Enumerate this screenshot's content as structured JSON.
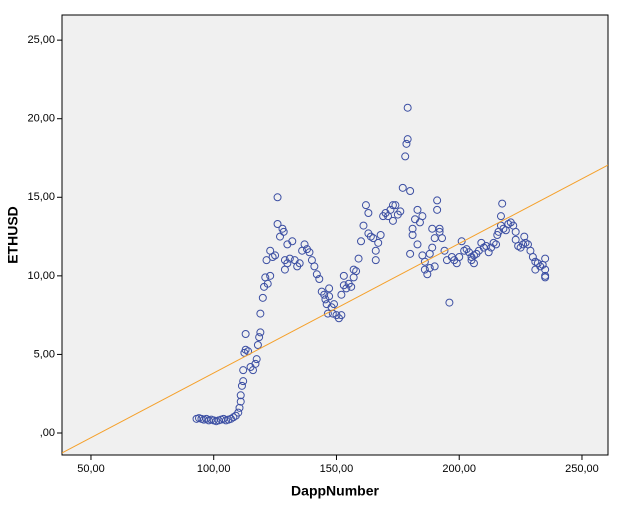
{
  "chart_data": {
    "type": "scatter",
    "xlabel": "DappNumber",
    "ylabel": "ETHUSD",
    "xlim": [
      38.2,
      260.6
    ],
    "ylim": [
      -1.4,
      26.6
    ],
    "xticks": [
      {
        "value": 50,
        "label": "50,00"
      },
      {
        "value": 100,
        "label": "100,00"
      },
      {
        "value": 150,
        "label": "150,00"
      },
      {
        "value": 200,
        "label": "200,00"
      },
      {
        "value": 250,
        "label": "250,00"
      }
    ],
    "yticks": [
      {
        "value": 0,
        "label": ",00"
      },
      {
        "value": 5,
        "label": "5,00"
      },
      {
        "value": 10,
        "label": "10,00"
      },
      {
        "value": 15,
        "label": "15,00"
      },
      {
        "value": 20,
        "label": "20,00"
      },
      {
        "value": 25,
        "label": "25,00"
      }
    ],
    "color": "#3c4fa3",
    "fit_line": {
      "slope": 0.0824,
      "intercept": -4.42,
      "color": "#f5a02a"
    },
    "x": [
      93,
      94,
      95,
      96,
      97,
      98,
      99,
      100,
      101,
      102,
      103,
      104,
      105,
      106,
      107,
      108,
      109,
      110,
      110.5,
      111,
      111,
      111.5,
      112,
      112,
      112.5,
      113,
      113,
      114,
      115,
      116,
      117,
      117.5,
      118,
      118.5,
      119,
      119,
      120,
      120.5,
      121,
      121.5,
      122,
      123,
      123,
      124,
      125,
      126,
      126,
      127,
      128,
      128.5,
      129,
      129,
      130,
      130,
      131,
      132,
      133,
      134,
      135,
      136,
      137,
      138,
      139,
      140,
      141,
      142,
      143,
      144,
      145,
      145.5,
      146,
      146.5,
      147,
      147,
      148,
      148.5,
      149,
      150,
      151,
      152,
      152,
      153,
      153,
      154,
      155,
      156,
      157,
      157,
      158,
      159,
      160,
      161,
      162,
      163,
      163,
      164,
      165,
      166,
      166,
      167,
      168,
      169,
      170,
      171,
      172,
      173,
      173,
      174,
      175,
      176,
      177,
      178,
      178.5,
      179,
      179,
      180,
      180,
      181,
      181,
      182,
      183,
      183,
      184,
      185,
      185,
      186,
      186,
      187,
      188,
      188,
      189,
      189,
      190,
      190,
      191,
      191,
      192,
      192,
      193,
      194,
      195,
      196,
      197,
      198,
      199,
      200,
      201,
      202,
      203,
      204,
      205,
      205,
      206,
      206,
      207,
      208,
      209,
      210,
      211,
      212,
      213,
      214,
      215,
      215.5,
      216,
      217,
      217,
      217.5,
      218,
      219,
      220,
      221,
      222,
      223,
      223,
      224,
      225,
      226,
      226.5,
      227,
      228,
      229,
      230,
      231,
      231,
      232,
      233,
      234,
      235,
      235,
      235,
      235
    ],
    "y": [
      0.9,
      0.95,
      0.9,
      0.85,
      0.9,
      0.8,
      0.85,
      0.8,
      0.75,
      0.8,
      0.85,
      0.9,
      0.8,
      0.85,
      0.9,
      1.0,
      1.1,
      1.3,
      1.6,
      2.0,
      2.4,
      3.0,
      3.3,
      4.0,
      5.1,
      5.3,
      6.3,
      5.2,
      4.2,
      4.0,
      4.4,
      4.7,
      5.6,
      6.1,
      6.4,
      7.6,
      8.6,
      9.3,
      9.9,
      11.0,
      9.5,
      10.0,
      11.6,
      11.2,
      11.3,
      15.0,
      13.3,
      12.5,
      13.0,
      12.8,
      11.0,
      10.4,
      10.8,
      12.0,
      11.1,
      12.2,
      11.0,
      10.6,
      10.8,
      11.6,
      12.0,
      11.7,
      11.5,
      11.0,
      10.6,
      10.1,
      9.8,
      9.0,
      8.8,
      8.5,
      8.2,
      7.6,
      8.7,
      9.2,
      8.0,
      7.6,
      8.2,
      7.5,
      7.3,
      7.5,
      8.8,
      9.4,
      10.0,
      9.2,
      9.5,
      9.3,
      9.9,
      10.4,
      10.3,
      11.1,
      12.2,
      13.2,
      14.5,
      14.0,
      12.7,
      12.5,
      12.4,
      11.6,
      11.0,
      12.1,
      12.6,
      13.8,
      14.0,
      13.8,
      14.2,
      14.5,
      13.5,
      14.5,
      13.9,
      14.1,
      15.6,
      17.6,
      18.4,
      18.7,
      20.7,
      15.4,
      11.4,
      12.6,
      13.0,
      13.6,
      14.2,
      12.0,
      13.4,
      13.8,
      11.3,
      10.4,
      10.9,
      10.1,
      10.5,
      11.4,
      11.8,
      13.0,
      12.4,
      10.6,
      14.8,
      14.2,
      13.0,
      12.8,
      12.4,
      11.6,
      11.0,
      8.3,
      11.2,
      11.0,
      10.8,
      11.2,
      12.2,
      11.6,
      11.7,
      11.5,
      11.0,
      11.2,
      10.8,
      11.3,
      11.4,
      11.6,
      12.1,
      11.8,
      11.9,
      11.5,
      11.8,
      12.1,
      12.0,
      12.6,
      12.8,
      13.2,
      13.8,
      14.6,
      13.0,
      12.9,
      13.3,
      13.4,
      13.2,
      12.8,
      12.3,
      11.9,
      11.8,
      12.0,
      12.5,
      12.1,
      12.0,
      11.6,
      11.2,
      10.9,
      10.4,
      10.8,
      10.6,
      10.7,
      11.1,
      10.4,
      10.0,
      9.9
    ]
  }
}
